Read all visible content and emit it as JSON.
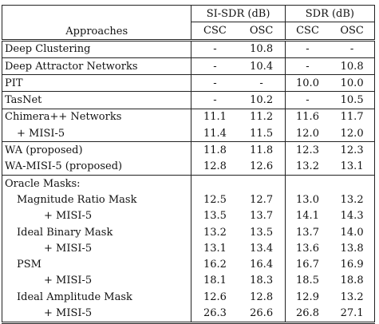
{
  "header": {
    "approaches": "Approaches",
    "group1": "SI-SDR (dB)",
    "group2": "SDR (dB)",
    "cols": [
      "CSC",
      "OSC",
      "CSC",
      "OSC"
    ]
  },
  "rows": [
    {
      "label": "Deep Clustering",
      "v": [
        "-",
        "10.8",
        "-",
        "-"
      ]
    },
    {
      "label": "Deep Attractor Networks",
      "v": [
        "-",
        "10.4",
        "-",
        "10.8"
      ]
    },
    {
      "label": "PIT",
      "v": [
        "-",
        "-",
        "10.0",
        "10.0"
      ]
    },
    {
      "label": "TasNet",
      "v": [
        "-",
        "10.2",
        "-",
        "10.5"
      ]
    },
    {
      "label": "Chimera++ Networks",
      "v": [
        "11.1",
        "11.2",
        "11.6",
        "11.7"
      ]
    },
    {
      "label": "+ MISI-5",
      "v": [
        "11.4",
        "11.5",
        "12.0",
        "12.0"
      ]
    },
    {
      "label": "WA (proposed)",
      "v": [
        "11.8",
        "11.8",
        "12.3",
        "12.3"
      ]
    },
    {
      "label": "WA-MISI-5 (proposed)",
      "v": [
        "12.8",
        "12.6",
        "13.2",
        "13.1"
      ]
    },
    {
      "label": "Oracle Masks:",
      "v": [
        "",
        "",
        "",
        ""
      ]
    },
    {
      "label": "Magnitude Ratio Mask",
      "v": [
        "12.5",
        "12.7",
        "13.0",
        "13.2"
      ]
    },
    {
      "label": "+ MISI-5",
      "v": [
        "13.5",
        "13.7",
        "14.1",
        "14.3"
      ]
    },
    {
      "label": "Ideal Binary Mask",
      "v": [
        "13.2",
        "13.5",
        "13.7",
        "14.0"
      ]
    },
    {
      "label": "+ MISI-5",
      "v": [
        "13.1",
        "13.4",
        "13.6",
        "13.8"
      ]
    },
    {
      "label": "PSM",
      "v": [
        "16.2",
        "16.4",
        "16.7",
        "16.9"
      ]
    },
    {
      "label": "+ MISI-5",
      "v": [
        "18.1",
        "18.3",
        "18.5",
        "18.8"
      ]
    },
    {
      "label": "Ideal Amplitude Mask",
      "v": [
        "12.6",
        "12.8",
        "12.9",
        "13.2"
      ]
    },
    {
      "label": "+ MISI-5",
      "v": [
        "26.3",
        "26.6",
        "26.8",
        "27.1"
      ]
    }
  ]
}
